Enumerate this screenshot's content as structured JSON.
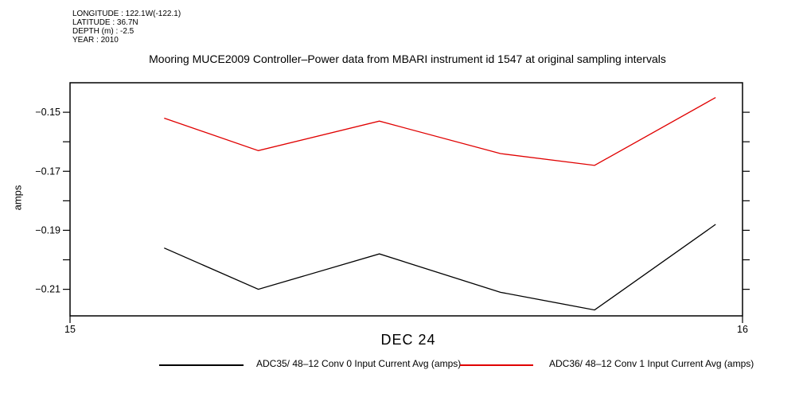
{
  "meta": {
    "longitude": "LONGITUDE : 122.1W(-122.1)",
    "latitude": "LATITUDE : 36.7N",
    "depth": "DEPTH (m) : -2.5",
    "year": "YEAR : 2010"
  },
  "chart_data": {
    "type": "line",
    "title": "Mooring MUCE2009 Controller–Power data from MBARI instrument id 1547 at original sampling intervals",
    "xlabel": "DEC 24",
    "ylabel": "amps",
    "xlim": [
      15,
      16
    ],
    "ylim": [
      -0.219,
      -0.14
    ],
    "grid": false,
    "legend_position": "bottom",
    "x": [
      15.14,
      15.28,
      15.46,
      15.64,
      15.78,
      15.96
    ],
    "series": [
      {
        "name": "ADC35/ 48–12 Conv 0 Input Current Avg (amps)",
        "color": "#000000",
        "values": [
          -0.196,
          -0.21,
          -0.198,
          -0.211,
          -0.217,
          -0.188
        ]
      },
      {
        "name": "ADC36/ 48–12 Conv 1 Input Current Avg (amps)",
        "color": "#e00000",
        "values": [
          -0.152,
          -0.163,
          -0.153,
          -0.164,
          -0.168,
          -0.145
        ]
      }
    ],
    "yticks": {
      "major": [
        {
          "label": "−0.15",
          "value": -0.15
        },
        {
          "label": "−0.17",
          "value": -0.17
        },
        {
          "label": "−0.19",
          "value": -0.19
        },
        {
          "label": "−0.21",
          "value": -0.21
        }
      ],
      "minor": [
        -0.16,
        -0.18,
        -0.2
      ]
    },
    "xticks": [
      {
        "label": "15",
        "value": 15
      },
      {
        "label": "16",
        "value": 16
      }
    ],
    "axis_color": "#000000"
  }
}
